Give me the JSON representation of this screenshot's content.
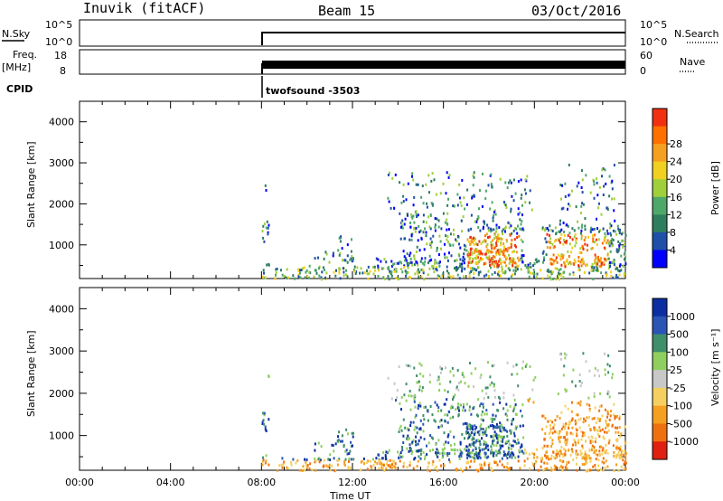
{
  "header": {
    "station": "Inuvik (fitACF)",
    "beam": "Beam 15",
    "date": "03/Oct/2016"
  },
  "strips": {
    "nsky_label": "N.Sky",
    "nsky_ticks": [
      "10^5",
      "10^0"
    ],
    "nsearch_label": "N.Search",
    "nsearch_ticks": [
      "10^5",
      "10^0"
    ],
    "freq_label": "Freq.",
    "freq_unit": "[MHz]",
    "freq_ticks": [
      "18",
      "8"
    ],
    "nave_label": "Nave",
    "nave_ticks": [
      "60",
      "0"
    ],
    "cpid_label": "CPID",
    "cpid_value": "twofsound -3503"
  },
  "chart_data": [
    {
      "type": "heatmap",
      "name": "power",
      "ylabel": "Slant Range [km]",
      "ylim": [
        180,
        4500
      ],
      "yticks": [
        1000,
        2000,
        3000,
        4000
      ],
      "xlim": [
        0,
        24
      ],
      "xticks": [
        "00:00",
        "04:00",
        "08:00",
        "12:00",
        "16:00",
        "20:00",
        "00:00"
      ],
      "colorbar_label": "Power [dB]",
      "colorbar_ticks": [
        4,
        8,
        12,
        16,
        20,
        24,
        28
      ],
      "colors": [
        "#0000ff",
        "#1f4fa8",
        "#2e7d5e",
        "#4ea86a",
        "#a0cf3c",
        "#f0d020",
        "#f5a020",
        "#ff7000",
        "#f03010"
      ],
      "data_start_hour": 8.0
    },
    {
      "type": "heatmap",
      "name": "velocity",
      "ylabel": "Slant Range [km]",
      "ylim": [
        180,
        4500
      ],
      "yticks": [
        1000,
        2000,
        3000,
        4000
      ],
      "xlim": [
        0,
        24
      ],
      "xticks": [
        "00:00",
        "04:00",
        "08:00",
        "12:00",
        "16:00",
        "20:00",
        "00:00"
      ],
      "xlabel": "Time UT",
      "colorbar_label": "Velocity [m s⁻¹]",
      "colorbar_ticks": [
        1000,
        500,
        100,
        25,
        -25,
        -100,
        -500,
        -1000
      ],
      "colors": [
        "#0b2fa0",
        "#2a55b5",
        "#3f8f6a",
        "#8fcf60",
        "#c8c8c8",
        "#f5d060",
        "#f5a020",
        "#f07010",
        "#e02010"
      ],
      "data_start_hour": 8.0
    }
  ]
}
